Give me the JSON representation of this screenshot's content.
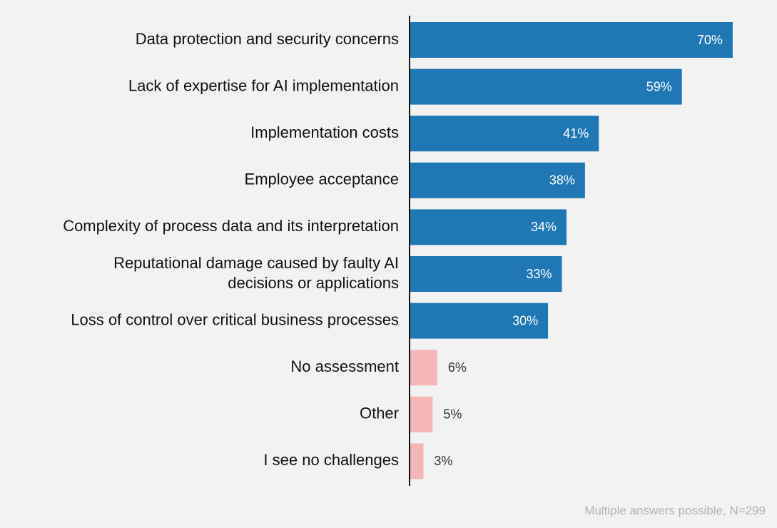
{
  "chart_data": {
    "type": "bar",
    "orientation": "horizontal",
    "categories": [
      [
        "Data protection and security concerns"
      ],
      [
        "Lack of expertise for AI implementation"
      ],
      [
        "Implementation costs"
      ],
      [
        "Employee acceptance"
      ],
      [
        "Complexity of process data and its interpretation"
      ],
      [
        "Reputational damage caused by faulty AI",
        "decisions or applications"
      ],
      [
        "Loss of control over critical business processes"
      ],
      [
        "No assessment"
      ],
      [
        "Other"
      ],
      [
        "I see no challenges"
      ]
    ],
    "values": [
      70,
      59,
      41,
      38,
      34,
      33,
      30,
      6,
      5,
      3
    ],
    "value_labels": [
      "70%",
      "59%",
      "41%",
      "38%",
      "34%",
      "33%",
      "30%",
      "6%",
      "5%",
      "3%"
    ],
    "xlim": [
      0,
      100
    ],
    "unit": "%",
    "grid": false,
    "legend": "none",
    "colors": {
      "primary": "#1f77b4",
      "secondary": "#f4b6b6",
      "label_inside": "#ffffff",
      "label_outside": "#333333",
      "axis": "#111111"
    },
    "highlight_count": 7,
    "footnote": "Multiple answers possible, N=299"
  }
}
